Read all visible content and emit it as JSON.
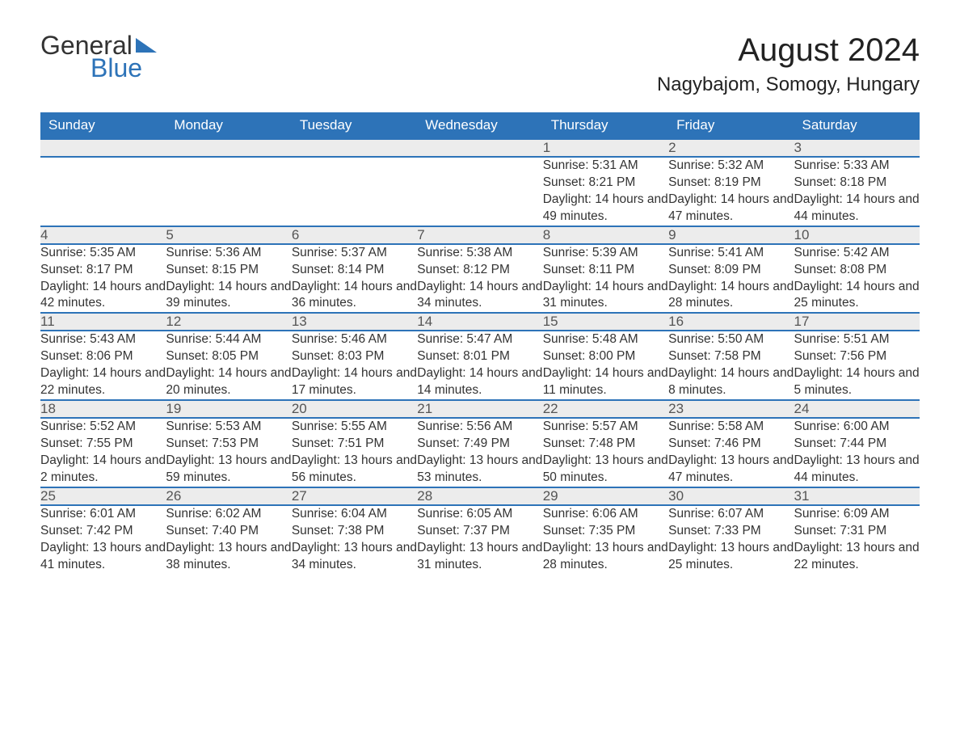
{
  "logo": {
    "part1": "General",
    "part2": "Blue"
  },
  "title": "August 2024",
  "location": "Nagybajom, Somogy, Hungary",
  "colors": {
    "brand_blue": "#2d73b8",
    "header_row_bg": "#ececec",
    "text": "#333333",
    "background": "#ffffff"
  },
  "typography": {
    "title_fontsize_pt": 30,
    "location_fontsize_pt": 18,
    "dayheader_fontsize_pt": 13,
    "body_fontsize_pt": 12
  },
  "calendar": {
    "type": "table",
    "days_of_week": [
      "Sunday",
      "Monday",
      "Tuesday",
      "Wednesday",
      "Thursday",
      "Friday",
      "Saturday"
    ],
    "weeks": [
      [
        null,
        null,
        null,
        null,
        {
          "n": "1",
          "sunrise": "Sunrise: 5:31 AM",
          "sunset": "Sunset: 8:21 PM",
          "daylight": "Daylight: 14 hours and 49 minutes."
        },
        {
          "n": "2",
          "sunrise": "Sunrise: 5:32 AM",
          "sunset": "Sunset: 8:19 PM",
          "daylight": "Daylight: 14 hours and 47 minutes."
        },
        {
          "n": "3",
          "sunrise": "Sunrise: 5:33 AM",
          "sunset": "Sunset: 8:18 PM",
          "daylight": "Daylight: 14 hours and 44 minutes."
        }
      ],
      [
        {
          "n": "4",
          "sunrise": "Sunrise: 5:35 AM",
          "sunset": "Sunset: 8:17 PM",
          "daylight": "Daylight: 14 hours and 42 minutes."
        },
        {
          "n": "5",
          "sunrise": "Sunrise: 5:36 AM",
          "sunset": "Sunset: 8:15 PM",
          "daylight": "Daylight: 14 hours and 39 minutes."
        },
        {
          "n": "6",
          "sunrise": "Sunrise: 5:37 AM",
          "sunset": "Sunset: 8:14 PM",
          "daylight": "Daylight: 14 hours and 36 minutes."
        },
        {
          "n": "7",
          "sunrise": "Sunrise: 5:38 AM",
          "sunset": "Sunset: 8:12 PM",
          "daylight": "Daylight: 14 hours and 34 minutes."
        },
        {
          "n": "8",
          "sunrise": "Sunrise: 5:39 AM",
          "sunset": "Sunset: 8:11 PM",
          "daylight": "Daylight: 14 hours and 31 minutes."
        },
        {
          "n": "9",
          "sunrise": "Sunrise: 5:41 AM",
          "sunset": "Sunset: 8:09 PM",
          "daylight": "Daylight: 14 hours and 28 minutes."
        },
        {
          "n": "10",
          "sunrise": "Sunrise: 5:42 AM",
          "sunset": "Sunset: 8:08 PM",
          "daylight": "Daylight: 14 hours and 25 minutes."
        }
      ],
      [
        {
          "n": "11",
          "sunrise": "Sunrise: 5:43 AM",
          "sunset": "Sunset: 8:06 PM",
          "daylight": "Daylight: 14 hours and 22 minutes."
        },
        {
          "n": "12",
          "sunrise": "Sunrise: 5:44 AM",
          "sunset": "Sunset: 8:05 PM",
          "daylight": "Daylight: 14 hours and 20 minutes."
        },
        {
          "n": "13",
          "sunrise": "Sunrise: 5:46 AM",
          "sunset": "Sunset: 8:03 PM",
          "daylight": "Daylight: 14 hours and 17 minutes."
        },
        {
          "n": "14",
          "sunrise": "Sunrise: 5:47 AM",
          "sunset": "Sunset: 8:01 PM",
          "daylight": "Daylight: 14 hours and 14 minutes."
        },
        {
          "n": "15",
          "sunrise": "Sunrise: 5:48 AM",
          "sunset": "Sunset: 8:00 PM",
          "daylight": "Daylight: 14 hours and 11 minutes."
        },
        {
          "n": "16",
          "sunrise": "Sunrise: 5:50 AM",
          "sunset": "Sunset: 7:58 PM",
          "daylight": "Daylight: 14 hours and 8 minutes."
        },
        {
          "n": "17",
          "sunrise": "Sunrise: 5:51 AM",
          "sunset": "Sunset: 7:56 PM",
          "daylight": "Daylight: 14 hours and 5 minutes."
        }
      ],
      [
        {
          "n": "18",
          "sunrise": "Sunrise: 5:52 AM",
          "sunset": "Sunset: 7:55 PM",
          "daylight": "Daylight: 14 hours and 2 minutes."
        },
        {
          "n": "19",
          "sunrise": "Sunrise: 5:53 AM",
          "sunset": "Sunset: 7:53 PM",
          "daylight": "Daylight: 13 hours and 59 minutes."
        },
        {
          "n": "20",
          "sunrise": "Sunrise: 5:55 AM",
          "sunset": "Sunset: 7:51 PM",
          "daylight": "Daylight: 13 hours and 56 minutes."
        },
        {
          "n": "21",
          "sunrise": "Sunrise: 5:56 AM",
          "sunset": "Sunset: 7:49 PM",
          "daylight": "Daylight: 13 hours and 53 minutes."
        },
        {
          "n": "22",
          "sunrise": "Sunrise: 5:57 AM",
          "sunset": "Sunset: 7:48 PM",
          "daylight": "Daylight: 13 hours and 50 minutes."
        },
        {
          "n": "23",
          "sunrise": "Sunrise: 5:58 AM",
          "sunset": "Sunset: 7:46 PM",
          "daylight": "Daylight: 13 hours and 47 minutes."
        },
        {
          "n": "24",
          "sunrise": "Sunrise: 6:00 AM",
          "sunset": "Sunset: 7:44 PM",
          "daylight": "Daylight: 13 hours and 44 minutes."
        }
      ],
      [
        {
          "n": "25",
          "sunrise": "Sunrise: 6:01 AM",
          "sunset": "Sunset: 7:42 PM",
          "daylight": "Daylight: 13 hours and 41 minutes."
        },
        {
          "n": "26",
          "sunrise": "Sunrise: 6:02 AM",
          "sunset": "Sunset: 7:40 PM",
          "daylight": "Daylight: 13 hours and 38 minutes."
        },
        {
          "n": "27",
          "sunrise": "Sunrise: 6:04 AM",
          "sunset": "Sunset: 7:38 PM",
          "daylight": "Daylight: 13 hours and 34 minutes."
        },
        {
          "n": "28",
          "sunrise": "Sunrise: 6:05 AM",
          "sunset": "Sunset: 7:37 PM",
          "daylight": "Daylight: 13 hours and 31 minutes."
        },
        {
          "n": "29",
          "sunrise": "Sunrise: 6:06 AM",
          "sunset": "Sunset: 7:35 PM",
          "daylight": "Daylight: 13 hours and 28 minutes."
        },
        {
          "n": "30",
          "sunrise": "Sunrise: 6:07 AM",
          "sunset": "Sunset: 7:33 PM",
          "daylight": "Daylight: 13 hours and 25 minutes."
        },
        {
          "n": "31",
          "sunrise": "Sunrise: 6:09 AM",
          "sunset": "Sunset: 7:31 PM",
          "daylight": "Daylight: 13 hours and 22 minutes."
        }
      ]
    ]
  }
}
